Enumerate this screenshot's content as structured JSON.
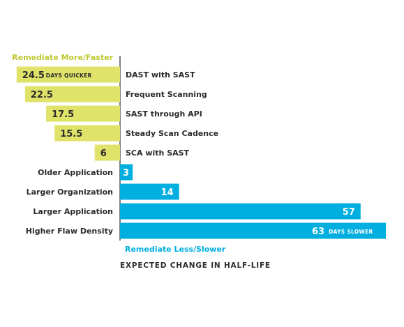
{
  "chart_data": {
    "type": "bar",
    "orientation": "horizontal-diverging",
    "xlabel": "EXPECTED CHANGE IN HALF-LIFE",
    "top_label": "Remediate More/Faster",
    "bottom_label": "Remediate Less/Slower",
    "colors": {
      "faster": "#dfe36a",
      "slower": "#00aee0",
      "faster_text": "#c2c832",
      "slower_text": "#00aee0",
      "text": "#2b2b2b",
      "axis": "#555555"
    },
    "series": [
      {
        "name": "Remediate More/Faster",
        "direction": "faster",
        "bars": [
          {
            "category": "DAST with SAST",
            "value": 24.5,
            "value_label": "24.5",
            "unit_label": "DAYS QUICKER"
          },
          {
            "category": "Frequent Scanning",
            "value": 22.5,
            "value_label": "22.5",
            "unit_label": ""
          },
          {
            "category": "SAST through API",
            "value": 17.5,
            "value_label": "17.5",
            "unit_label": ""
          },
          {
            "category": "Steady Scan Cadence",
            "value": 15.5,
            "value_label": "15.5",
            "unit_label": ""
          },
          {
            "category": "SCA with SAST",
            "value": 6,
            "value_label": "6",
            "unit_label": ""
          }
        ]
      },
      {
        "name": "Remediate Less/Slower",
        "direction": "slower",
        "bars": [
          {
            "category": "Older Application",
            "value": 3,
            "value_label": "3",
            "unit_label": ""
          },
          {
            "category": "Larger Organization",
            "value": 14,
            "value_label": "14",
            "unit_label": ""
          },
          {
            "category": "Larger Application",
            "value": 57,
            "value_label": "57",
            "unit_label": ""
          },
          {
            "category": "Higher Flaw Density",
            "value": 63,
            "value_label": "63",
            "unit_label": "DAYS SLOWER"
          }
        ]
      }
    ],
    "xlim": [
      -26,
      63
    ],
    "grid": false,
    "legend": "none"
  }
}
